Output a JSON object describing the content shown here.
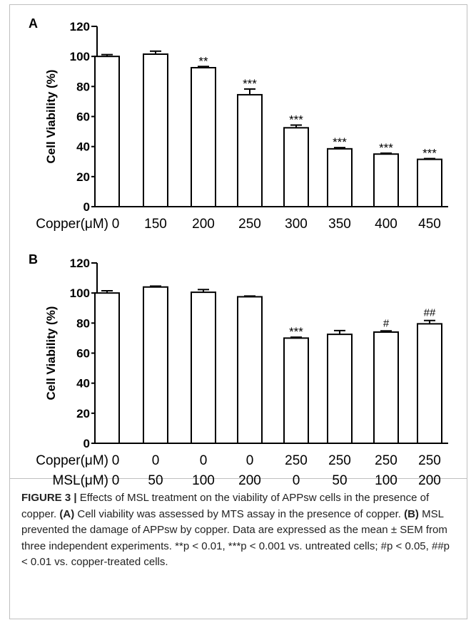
{
  "chart_data": [
    {
      "type": "bar",
      "panel_label": "A",
      "ylabel": "Cell Viability (%)",
      "ylim": [
        0,
        120
      ],
      "yticks": [
        0,
        20,
        40,
        60,
        80,
        100,
        120
      ],
      "row_labels": [
        "Copper(μM)"
      ],
      "categories": [
        [
          "0"
        ],
        [
          "150"
        ],
        [
          "200"
        ],
        [
          "250"
        ],
        [
          "300"
        ],
        [
          "350"
        ],
        [
          "400"
        ],
        [
          "450"
        ]
      ],
      "values": [
        100,
        101.5,
        92.5,
        74.5,
        52.5,
        38.5,
        35,
        31.5
      ],
      "errors": [
        1.2,
        2,
        0.8,
        3.8,
        1.8,
        0.8,
        0.6,
        0.5
      ],
      "annotations": [
        "",
        "",
        "**",
        "***",
        "***",
        "***",
        "***",
        "***"
      ],
      "bar_color": "#ffffff",
      "stroke_color": "#000000"
    },
    {
      "type": "bar",
      "panel_label": "B",
      "ylabel": "Cell Viability (%)",
      "ylim": [
        0,
        120
      ],
      "yticks": [
        0,
        20,
        40,
        60,
        80,
        100,
        120
      ],
      "row_labels": [
        "Copper(μM)",
        "MSL(μM)"
      ],
      "categories": [
        [
          "0",
          "0"
        ],
        [
          "0",
          "50"
        ],
        [
          "0",
          "100"
        ],
        [
          "0",
          "200"
        ],
        [
          "250",
          "0"
        ],
        [
          "250",
          "50"
        ],
        [
          "250",
          "100"
        ],
        [
          "250",
          "200"
        ]
      ],
      "values": [
        100,
        104,
        100.5,
        97.5,
        70,
        72.5,
        74,
        79.5
      ],
      "errors": [
        1.5,
        0.6,
        1.8,
        0.5,
        0.6,
        2.5,
        0.8,
        2.2
      ],
      "annotations": [
        "",
        "",
        "",
        "",
        "***",
        "",
        "#",
        "##"
      ],
      "bar_color": "#ffffff",
      "stroke_color": "#000000"
    }
  ],
  "caption": {
    "title": "FIGURE 3 |",
    "text_1": " Effects of MSL treatment on the viability of APPsw cells in the presence of copper. ",
    "ref_a": "(A)",
    "text_2": " Cell viability was assessed by MTS assay in the presence of copper. ",
    "ref_b": "(B)",
    "text_3": " MSL prevented the damage of APPsw by copper. Data are expressed as the mean ± SEM from three independent experiments. **p < 0.01, ***p < 0.001 vs. untreated cells; #p < 0.05, ##p < 0.01 vs. copper-treated cells."
  }
}
